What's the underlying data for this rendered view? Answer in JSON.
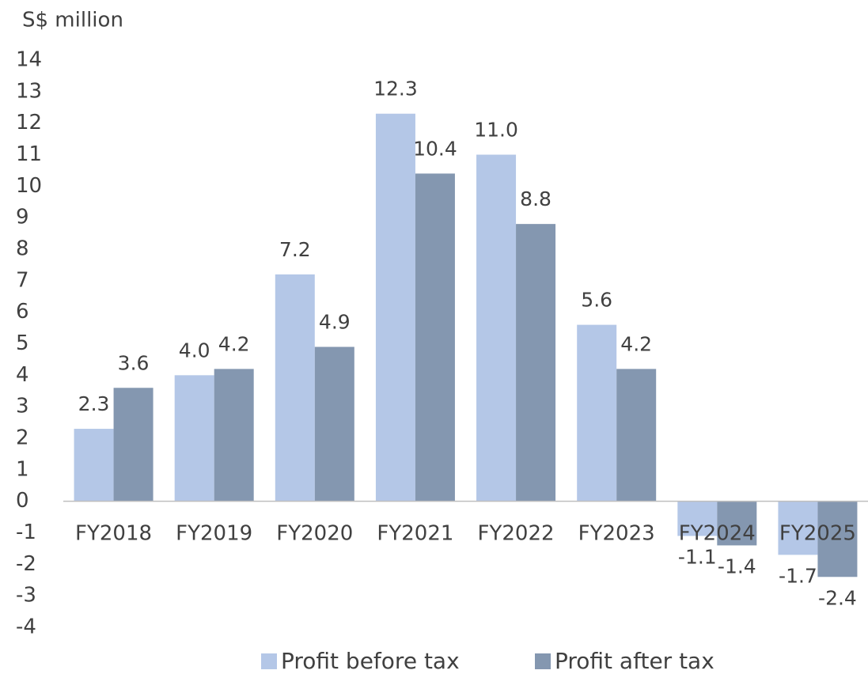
{
  "chart_data": {
    "type": "bar",
    "y_label": "S$ million",
    "categories": [
      "FY2018",
      "FY2019",
      "FY2020",
      "FY2021",
      "FY2022",
      "FY2023",
      "FY2024",
      "FY2025"
    ],
    "series": [
      {
        "name": "Profit before tax",
        "color": "#b4c7e7",
        "values": [
          2.3,
          4.0,
          7.2,
          12.3,
          11.0,
          5.6,
          -1.1,
          -1.7
        ],
        "value_labels": [
          "2.3",
          "4.0",
          "7.2",
          "12.3",
          "11.0",
          "5.6",
          "-1.1",
          "-1.7"
        ]
      },
      {
        "name": "Profit after tax",
        "color": "#8497b0",
        "values": [
          3.6,
          4.2,
          4.9,
          10.4,
          8.8,
          4.2,
          -1.4,
          -2.4
        ],
        "value_labels": [
          "3.6",
          "4.2",
          "4.9",
          "10.4",
          "8.8",
          "4.2",
          "-1.4",
          "-2.4"
        ]
      }
    ],
    "ylim": [
      -4,
      14
    ],
    "yticks": [
      -4,
      -3,
      -2,
      -1,
      0,
      1,
      2,
      3,
      4,
      5,
      6,
      7,
      8,
      9,
      10,
      11,
      12,
      13,
      14
    ],
    "legend": "bottom"
  }
}
